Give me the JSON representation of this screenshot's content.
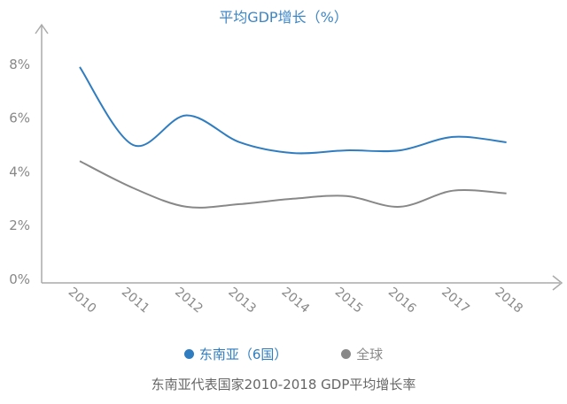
{
  "chart_data": {
    "type": "line",
    "title": "平均GDP增长（%）",
    "caption": "东南亚代表国家2010-2018 GDP平均增长率",
    "xlabel": "",
    "ylabel": "",
    "categories": [
      "2010",
      "2011",
      "2012",
      "2013",
      "2014",
      "2015",
      "2016",
      "2017",
      "2018"
    ],
    "y_ticks": [
      "0%",
      "2%",
      "4%",
      "6%",
      "8%"
    ],
    "ylim": [
      0,
      9
    ],
    "grid": false,
    "smooth": true,
    "legend_position": "bottom",
    "series": [
      {
        "name": "东南亚（6国）",
        "color": "#2f7dc0",
        "values": [
          7.9,
          5.0,
          6.1,
          5.1,
          4.7,
          4.8,
          4.8,
          5.3,
          5.1
        ]
      },
      {
        "name": "全球",
        "color": "#888888",
        "values": [
          4.4,
          3.4,
          2.7,
          2.8,
          3.0,
          3.1,
          2.7,
          3.3,
          3.2
        ]
      }
    ]
  }
}
